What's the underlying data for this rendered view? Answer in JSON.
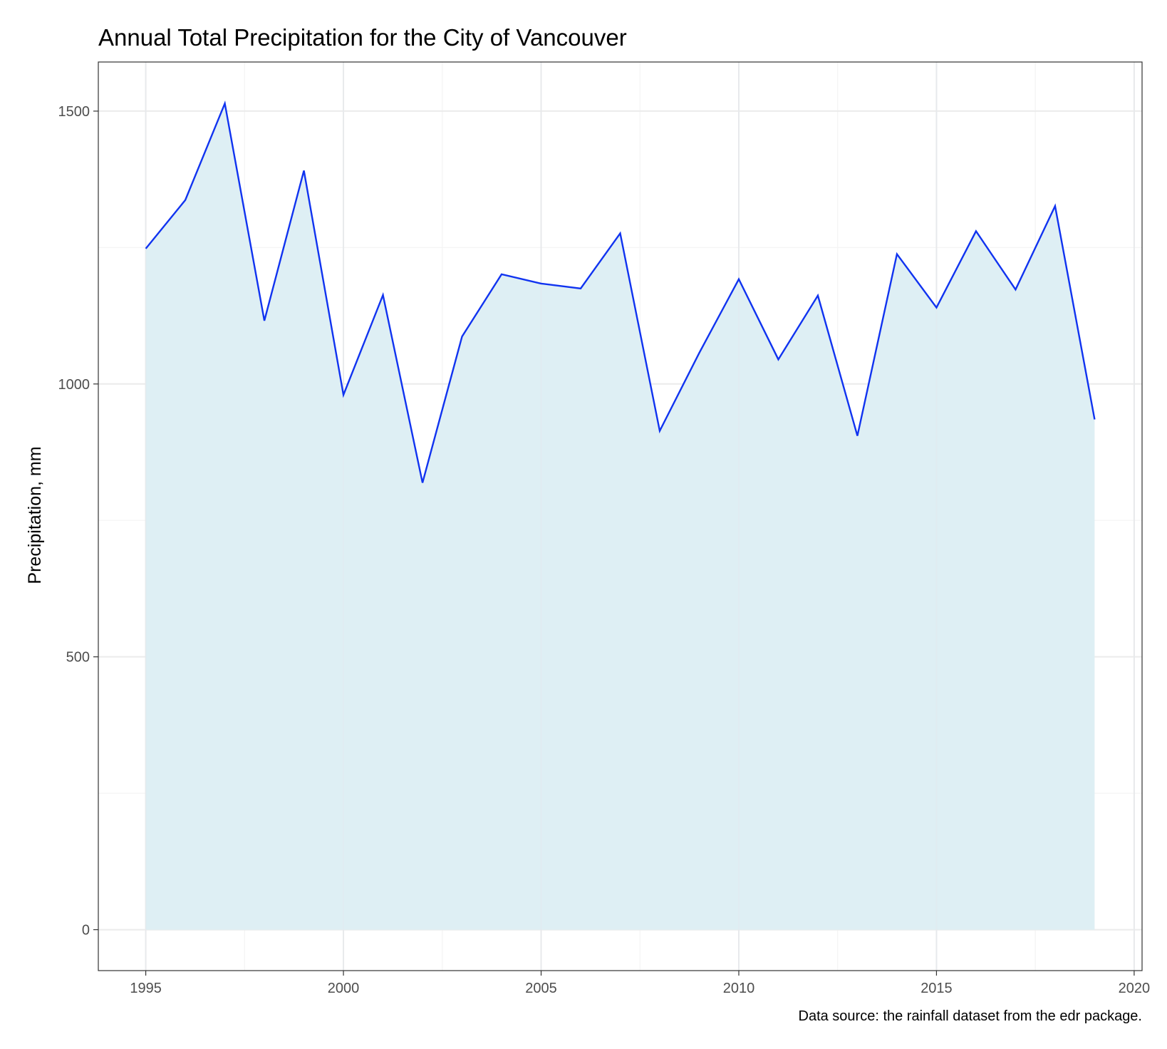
{
  "chart_data": {
    "type": "area",
    "title": "Annual Total Precipitation for the City of Vancouver",
    "xlabel": "",
    "ylabel": "Precipitation, mm",
    "caption": "Data source: the rainfall dataset from the edr package.",
    "xlim": [
      1993.8,
      2020.2
    ],
    "ylim": [
      -75,
      1590
    ],
    "x_ticks": [
      1995,
      2000,
      2005,
      2010,
      2015,
      2020
    ],
    "x_tick_labels": [
      "1995",
      "2000",
      "2005",
      "2010",
      "2015",
      "2020"
    ],
    "y_ticks": [
      0,
      500,
      1000,
      1500
    ],
    "y_tick_labels": [
      "0",
      "500",
      "1000",
      "1500"
    ],
    "grid": true,
    "x": [
      1995,
      1996,
      1997,
      1998,
      1999,
      2000,
      2001,
      2002,
      2003,
      2004,
      2005,
      2006,
      2007,
      2008,
      2009,
      2010,
      2011,
      2012,
      2013,
      2014,
      2015,
      2016,
      2017,
      2018,
      2019
    ],
    "series": [
      {
        "values": [
          1248,
          1337,
          1514,
          1116,
          1391,
          980,
          1163,
          819,
          1087,
          1201,
          1184,
          1175,
          1276,
          914,
          1057,
          1192,
          1045,
          1162,
          905,
          1238,
          1140,
          1280,
          1173,
          1326,
          935
        ],
        "line_color": "#1033f0",
        "fill_color": "#deeff4"
      }
    ],
    "colors": {
      "background": "#ffffff",
      "panel_border": "#333333",
      "grid_major": "#ebebeb",
      "grid_minor": "#f4f4f4"
    }
  }
}
